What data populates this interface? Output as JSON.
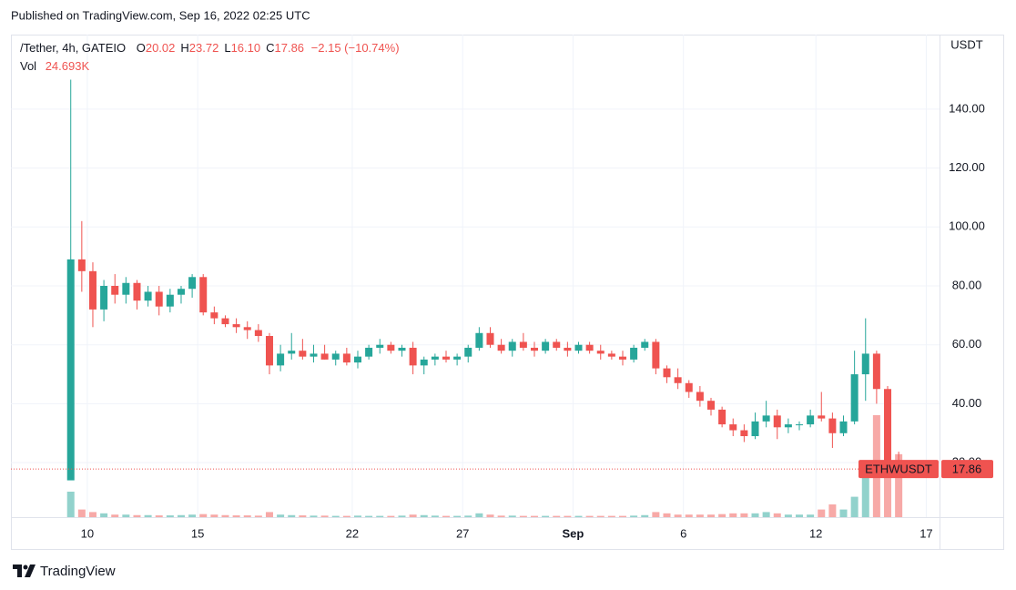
{
  "published": "Published on TradingView.com, Sep 16, 2022 02:25 UTC",
  "footer": "TradingView",
  "chart_data": {
    "type": "candlestick",
    "symbol": "ETHWUSDT",
    "legend": {
      "title": "/Tether, 4h, GATEIO",
      "ohlc": [
        {
          "label": "O",
          "value": "20.02"
        },
        {
          "label": "H",
          "value": "23.72"
        },
        {
          "label": "L",
          "value": "16.10"
        },
        {
          "label": "C",
          "value": "17.86"
        }
      ],
      "change": "−2.15 (−10.74%)",
      "volume_label": "Vol",
      "volume_value": "24.693K"
    },
    "y_axis_label": "USDT",
    "up_color": "#26a69a",
    "down_color": "#ef5350",
    "x": [
      8.25,
      8.75,
      9.25,
      9.75,
      10.25,
      10.75,
      11.25,
      11.75,
      12.25,
      12.75,
      13.25,
      13.75,
      14.25,
      14.75,
      15.25,
      15.75,
      16.25,
      16.75,
      17.25,
      17.75,
      18.25,
      18.75,
      19.25,
      19.75,
      20.25,
      20.75,
      21.25,
      21.75,
      22.25,
      22.75,
      23.25,
      23.75,
      24.25,
      24.75,
      25.25,
      25.75,
      26.25,
      26.75,
      27.25,
      27.75,
      28.25,
      28.75,
      29.25,
      29.75,
      30.25,
      30.75,
      31.25,
      31.75,
      32.25,
      32.75,
      33.25,
      33.75,
      34.25,
      34.75,
      35.25,
      35.75,
      36.25,
      36.75,
      37.25,
      37.75,
      38.25,
      38.75,
      39.25,
      39.75,
      40.25,
      40.75,
      41.25,
      41.75,
      42.25,
      42.75,
      43.25,
      43.75,
      44.25,
      44.75,
      45.25,
      45.75
    ],
    "open": [
      14,
      89,
      85,
      72,
      80,
      77,
      81,
      75,
      78,
      73,
      77,
      79,
      83,
      71,
      69,
      67,
      66,
      65,
      63,
      53,
      57,
      58,
      56,
      57,
      55,
      57,
      54,
      56,
      59,
      60,
      58,
      59,
      53,
      55,
      56,
      55,
      56,
      59,
      64,
      60,
      58,
      61,
      59,
      58,
      61,
      59,
      58,
      60,
      58,
      57,
      56,
      55,
      59,
      61,
      52,
      49,
      47,
      44,
      41,
      38,
      33,
      31,
      29,
      34,
      36,
      32,
      33,
      33,
      36,
      35,
      30,
      34,
      50,
      57,
      45,
      20.02
    ],
    "high": [
      150,
      102,
      88,
      82,
      84,
      83,
      82,
      80,
      80,
      79,
      80,
      84,
      84,
      73,
      70,
      69,
      68,
      67,
      64,
      60,
      64,
      62,
      60,
      60,
      58,
      59,
      58,
      60,
      62,
      61,
      60,
      61,
      56,
      57,
      58,
      57,
      60,
      66,
      66,
      62,
      62,
      64,
      61,
      62,
      62,
      61,
      61,
      61,
      60,
      58,
      58,
      60,
      62,
      62,
      53,
      52,
      48,
      46,
      42,
      39,
      35,
      33,
      37,
      41,
      38,
      35,
      34,
      38,
      44,
      37,
      36,
      58,
      69,
      58,
      46,
      23.72
    ],
    "low": [
      14,
      78,
      66,
      68,
      74,
      74,
      72,
      73,
      70,
      71,
      74,
      76,
      70,
      67,
      66,
      64,
      62,
      61,
      50,
      51,
      55,
      55,
      54,
      55,
      53,
      53,
      52,
      55,
      57,
      57,
      56,
      50,
      50,
      53,
      54,
      53,
      54,
      58,
      59,
      57,
      56,
      58,
      56,
      57,
      58,
      56,
      57,
      57,
      55,
      55,
      53,
      54,
      58,
      50,
      47,
      45,
      42,
      39,
      36,
      32,
      29,
      27,
      28,
      32,
      28,
      30,
      31,
      32,
      34,
      25,
      29,
      33,
      41,
      40,
      16,
      16.1
    ],
    "close": [
      89,
      85,
      72,
      80,
      77,
      81,
      75,
      78,
      73,
      77,
      79,
      83,
      71,
      69,
      67,
      66,
      65,
      63,
      53,
      57,
      58,
      56,
      57,
      55,
      57,
      54,
      56,
      59,
      60,
      58,
      59,
      53,
      55,
      56,
      55,
      56,
      59,
      64,
      60,
      58,
      61,
      59,
      58,
      61,
      59,
      58,
      60,
      58,
      57,
      56,
      55,
      59,
      61,
      52,
      49,
      47,
      44,
      41,
      38,
      33,
      31,
      29,
      34,
      36,
      32,
      33,
      33,
      36,
      35,
      30,
      34,
      50,
      57,
      45,
      20,
      17.86
    ],
    "volume": [
      10,
      3,
      2,
      1.5,
      1,
      1,
      0.8,
      0.8,
      0.7,
      0.7,
      0.8,
      1,
      1.2,
      1,
      0.8,
      0.7,
      0.7,
      0.6,
      2,
      1,
      0.8,
      0.7,
      0.6,
      0.6,
      0.5,
      0.5,
      0.6,
      0.5,
      0.5,
      0.5,
      0.6,
      1,
      0.8,
      0.6,
      0.5,
      0.5,
      0.6,
      1.5,
      1,
      0.6,
      0.6,
      0.5,
      0.5,
      0.5,
      0.5,
      0.5,
      0.5,
      0.5,
      0.5,
      0.5,
      0.5,
      0.6,
      0.8,
      2,
      1.5,
      1,
      1,
      1,
      1,
      1.2,
      1.5,
      1.5,
      1.5,
      2,
      1.5,
      1,
      1,
      1,
      3,
      5,
      3,
      8,
      18,
      40,
      50,
      24.693
    ],
    "xlim": [
      5.54,
      47.6
    ],
    "xticks": [
      {
        "value": 9,
        "label": "10"
      },
      {
        "value": 14,
        "label": "15"
      },
      {
        "value": 21,
        "label": "22"
      },
      {
        "value": 26,
        "label": "27"
      },
      {
        "value": 31,
        "label": "Sep"
      },
      {
        "value": 36,
        "label": "6"
      },
      {
        "value": 42,
        "label": "12"
      },
      {
        "value": 47,
        "label": "17"
      }
    ],
    "ylim": [
      1.5,
      165.3
    ],
    "yticks": [
      {
        "value": 20,
        "label": "20.00"
      },
      {
        "value": 40,
        "label": "40.00"
      },
      {
        "value": 60,
        "label": "60.00"
      },
      {
        "value": 80,
        "label": "80.00"
      },
      {
        "value": 100,
        "label": "100.00"
      },
      {
        "value": 120,
        "label": "120.00"
      },
      {
        "value": 140,
        "label": "140.00"
      }
    ],
    "grid": true
  }
}
